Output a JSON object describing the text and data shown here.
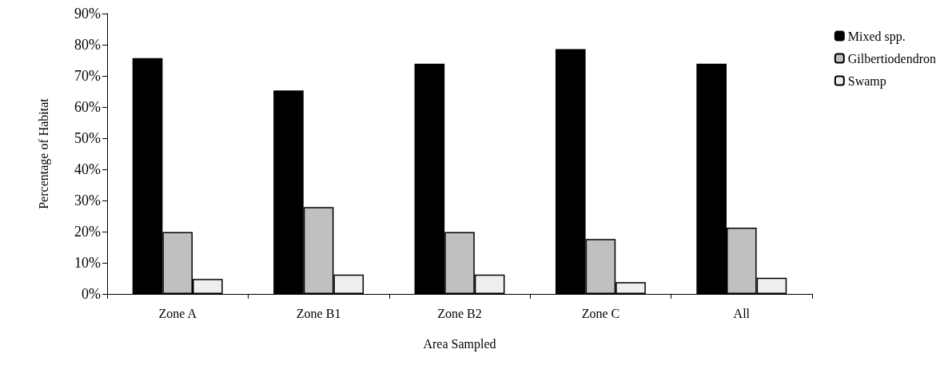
{
  "chart_data": {
    "type": "bar",
    "xlabel": "Area Sampled",
    "ylabel": "Percentage of Habitat",
    "categories": [
      "Zone A",
      "Zone B1",
      "Zone B2",
      "Zone C",
      "All"
    ],
    "series": [
      {
        "name": "Mixed spp.",
        "color": "#000000",
        "values": [
          75.7,
          65.3,
          73.9,
          78.6,
          73.9
        ]
      },
      {
        "name": "Gilbertiodendron",
        "color": "#c0c0c0",
        "values": [
          19.9,
          27.9,
          19.9,
          17.6,
          21.3
        ]
      },
      {
        "name": "Swamp",
        "color": "#eeeeee",
        "values": [
          4.8,
          6.2,
          6.2,
          3.8,
          5.2
        ]
      }
    ],
    "ylim": [
      0,
      90
    ],
    "yticks": [
      {
        "value": 0,
        "label": "0%"
      },
      {
        "value": 10,
        "label": "10%"
      },
      {
        "value": 20,
        "label": "20%"
      },
      {
        "value": 30,
        "label": "30%"
      },
      {
        "value": 40,
        "label": "40%"
      },
      {
        "value": 50,
        "label": "50%"
      },
      {
        "value": 60,
        "label": "60%"
      },
      {
        "value": 70,
        "label": "70%"
      },
      {
        "value": 80,
        "label": "80%"
      },
      {
        "value": 90,
        "label": "90%"
      }
    ],
    "grid": false,
    "legend": "top right"
  }
}
